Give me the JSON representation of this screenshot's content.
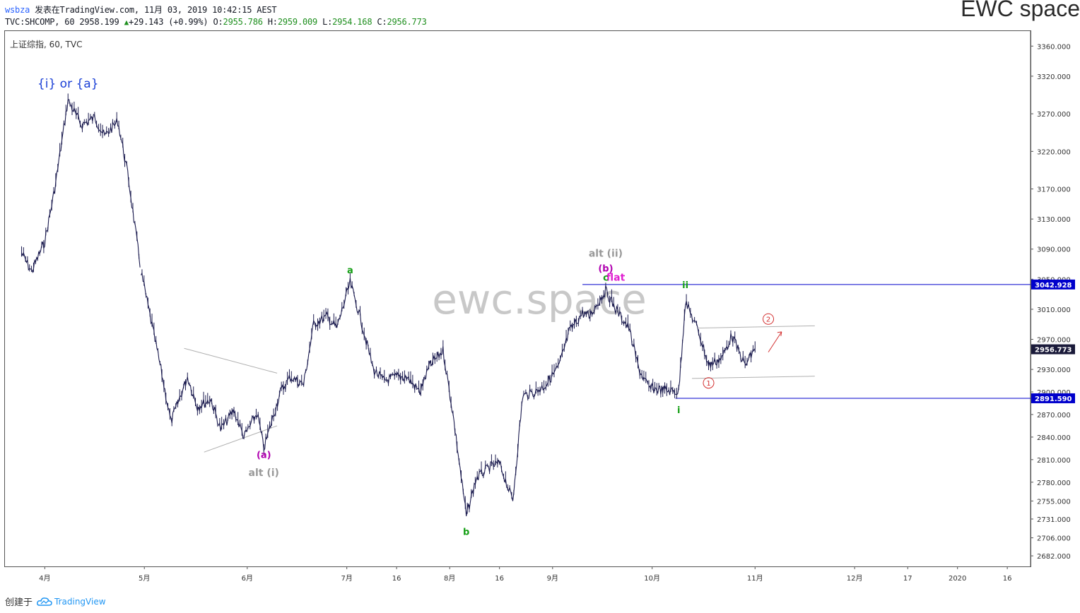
{
  "header": {
    "user": "wsbza",
    "published": "发表在TradingView.com, 11月 03, 2019 10:42:15 AEST",
    "symbol_prefix": "TVC:SHCOMP, 60 ",
    "last": "2958.199",
    "change": "+29.143 (+0.99%)",
    "o_label": "O:",
    "o_val": "2955.786",
    "h_label": "H:",
    "h_val": "2959.009",
    "l_label": "L:",
    "l_val": "2954.168",
    "c_label": "C:",
    "c_val": "2956.773"
  },
  "brand": "EWC space",
  "legend": "上证综指, 60, TVC",
  "watermark": "ewc.space",
  "footer": {
    "created": "创建于",
    "logo_text": "TradingView"
  },
  "colors": {
    "candle": "#1a1a4e",
    "level_line": "#0000cc",
    "price_tag": "#0000cc",
    "current_tag": "#1a1a3a",
    "green_label": "#17a017",
    "magenta_label": "#b000b0",
    "gray_label": "#999999",
    "red_mark": "#d32f2f",
    "channel": "#b0b0b0"
  },
  "chart_data": {
    "type": "line",
    "title": "上证综指, 60, TVC",
    "x": [
      "2019-03-25",
      "2019-03-28",
      "2019-04-01",
      "2019-04-04",
      "2019-04-08",
      "2019-04-12",
      "2019-04-16",
      "2019-04-19",
      "2019-04-23",
      "2019-04-26",
      "2019-04-30",
      "2019-05-06",
      "2019-05-09",
      "2019-05-14",
      "2019-05-17",
      "2019-05-21",
      "2019-05-24",
      "2019-05-28",
      "2019-05-31",
      "2019-06-04",
      "2019-06-06",
      "2019-06-11",
      "2019-06-14",
      "2019-06-18",
      "2019-06-21",
      "2019-06-25",
      "2019-06-28",
      "2019-07-02",
      "2019-07-05",
      "2019-07-09",
      "2019-07-12",
      "2019-07-16",
      "2019-07-19",
      "2019-07-23",
      "2019-07-26",
      "2019-07-30",
      "2019-08-02",
      "2019-08-06",
      "2019-08-09",
      "2019-08-13",
      "2019-08-16",
      "2019-08-20",
      "2019-08-23",
      "2019-08-27",
      "2019-08-30",
      "2019-09-03",
      "2019-09-06",
      "2019-09-10",
      "2019-09-12",
      "2019-09-17",
      "2019-09-20",
      "2019-09-24",
      "2019-09-27",
      "2019-09-30",
      "2019-10-09",
      "2019-10-11",
      "2019-10-15",
      "2019-10-18",
      "2019-10-22",
      "2019-10-25",
      "2019-10-29",
      "2019-11-01"
    ],
    "values": [
      3085,
      3060,
      3100,
      3170,
      3288,
      3255,
      3265,
      3240,
      3260,
      3190,
      3060,
      2930,
      2860,
      2920,
      2880,
      2890,
      2850,
      2875,
      2840,
      2872,
      2825,
      2900,
      2920,
      2910,
      2990,
      3000,
      2985,
      3045,
      3000,
      2930,
      2915,
      2920,
      2920,
      2900,
      2935,
      2955,
      2870,
      2735,
      2785,
      2800,
      2805,
      2755,
      2895,
      2900,
      2910,
      2935,
      2980,
      3005,
      3000,
      3035,
      3010,
      2985,
      2930,
      2905,
      2900,
      3020,
      2980,
      2935,
      2945,
      2975,
      2935,
      2958
    ],
    "y_ticks": [
      "3360.000",
      "3320.000",
      "3270.000",
      "3220.000",
      "3170.000",
      "3130.000",
      "3090.000",
      "3050.000",
      "3010.000",
      "2970.000",
      "2930.000",
      "2900.000",
      "2870.000",
      "2840.000",
      "2810.000",
      "2780.000",
      "2755.000",
      "2731.000",
      "2706.000",
      "2682.000"
    ],
    "x_ticks": [
      "4月",
      "5月",
      "6月",
      "7月",
      "16",
      "8月",
      "16",
      "9月",
      "10月",
      "11月",
      "12月",
      "17",
      "2020",
      "16"
    ],
    "ylim": [
      2668,
      3380
    ],
    "levels": [
      {
        "price": 3042.928,
        "label": "3042.928"
      },
      {
        "price": 2891.59,
        "label": "2891.590"
      }
    ],
    "current": {
      "price": 2956.773,
      "label": "2956.773"
    },
    "annotations": [
      {
        "text": "{i} or {a}",
        "date": "2019-04-08",
        "price": 3305
      },
      {
        "text": "(a)",
        "date": "2019-06-06",
        "price": 2812
      },
      {
        "text": "alt (i)",
        "date": "2019-06-06",
        "price": 2788
      },
      {
        "text": "a",
        "date": "2019-07-02",
        "price": 3058
      },
      {
        "text": "b",
        "date": "2019-08-06",
        "price": 2710
      },
      {
        "text": "alt (ii)",
        "date": "2019-09-17",
        "price": 3080
      },
      {
        "text": "(b)",
        "date": "2019-09-17",
        "price": 3060
      },
      {
        "text": "flat",
        "date": "2019-09-20",
        "price": 3048
      },
      {
        "text": "c",
        "date": "2019-09-17",
        "price": 3048
      },
      {
        "text": "ii",
        "date": "2019-10-11",
        "price": 3038
      },
      {
        "text": "i",
        "date": "2019-10-09",
        "price": 2872
      },
      {
        "text": "1",
        "date": "2019-10-18",
        "price": 2912
      },
      {
        "text": "2",
        "date": "2019-11-05",
        "price": 2997
      }
    ]
  }
}
